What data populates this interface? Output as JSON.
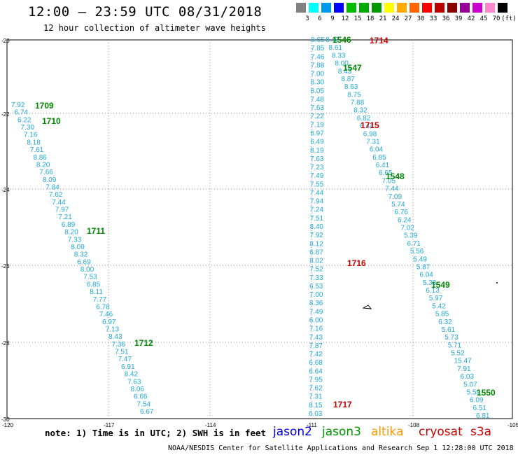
{
  "title": "12:00 – 23:59 UTC 08/31/2018",
  "subtitle": "12 hour collection of altimeter wave heights",
  "legend": {
    "colors": [
      "#808080",
      "#00ffff",
      "#0099ee",
      "#0000ff",
      "#00bb00",
      "#00aa00",
      "#009900",
      "#ffff00",
      "#ffaa00",
      "#ff6600",
      "#ff0000",
      "#bb0000",
      "#880000",
      "#990099",
      "#cc00cc",
      "#ff88cc",
      "#000000"
    ],
    "labels": [
      "3",
      "6",
      "9",
      "12",
      "15",
      "18",
      "21",
      "24",
      "27",
      "30",
      "33",
      "36",
      "39",
      "42",
      "45",
      "70",
      "(ft)"
    ]
  },
  "axes": {
    "lat_labels": [
      "-20",
      "-22",
      "-24",
      "-26",
      "-28",
      "-30"
    ],
    "lon_labels": [
      "-120",
      "-117",
      "-114",
      "-111",
      "-108",
      "-105"
    ]
  },
  "note": "note: 1) Time is in UTC; 2) SWH is in feet",
  "satellites": [
    {
      "name": "jason2",
      "color": "#0000dd"
    },
    {
      "name": "jason3",
      "color": "#009900"
    },
    {
      "name": "altika",
      "color": "#ff9900"
    },
    {
      "name": "cryosat",
      "color": "#cc0000"
    },
    {
      "name": "s3a",
      "color": "#cc0000"
    }
  ],
  "credit": "NOAA/NESDIS Center for Satellite Applications and Research   Sep  1 12:28:00 UTC 2018",
  "tracks": [
    {
      "id": "west",
      "values": [
        "7.92",
        "6.74",
        "6.22",
        "7.30",
        "7.16",
        "8.18",
        "7.61",
        "8.86",
        "8.20",
        "7.66",
        "8.09",
        "7.84",
        "7.62",
        "7.44",
        "7.97",
        "7.21",
        "6.89",
        "8.20",
        "7.33",
        "8.09",
        "8.32",
        "6.69",
        "8.00",
        "7.53",
        "6.85",
        "8.11",
        "7.77",
        "6.78",
        "7.46",
        "6.97",
        "7.13",
        "8.43",
        "7.36",
        "7.51",
        "7.47",
        "6.91",
        "8.42",
        "7.63",
        "8.06",
        "6.66",
        "7.54",
        "6.67"
      ]
    },
    {
      "id": "central",
      "values": [
        "8.65",
        "7.85",
        "7.46",
        "7.88",
        "7.00",
        "8.30",
        "8.05",
        "7.48",
        "7.63",
        "7.22",
        "7.19",
        "6.97",
        "6.49",
        "8.19",
        "7.63",
        "7.23",
        "7.49",
        "7.55",
        "7.44",
        "7.94",
        "7.24",
        "7.51",
        "8.40",
        "7.92",
        "8.12",
        "6.87",
        "8.02",
        "7.52",
        "7.33",
        "6.53",
        "7.00",
        "8.36",
        "7.49",
        "6.00",
        "7.16",
        "7.43",
        "7.87",
        "7.42",
        "6.68",
        "6.64",
        "7.95",
        "7.62",
        "7.31",
        "8.15",
        "6.03"
      ]
    },
    {
      "id": "east",
      "values": [
        "8.47",
        "8.61",
        "8.33",
        "8.00",
        "8.43",
        "8.87",
        "8.63",
        "8.75",
        "7.88",
        "8.32",
        "6.82",
        "6.44",
        "6.98",
        "7.31",
        "6.04",
        "6.85",
        "6.41",
        "6.65",
        "7.05",
        "7.44",
        "7.09",
        "5.74",
        "6.76",
        "6.24",
        "7.02",
        "5.39",
        "6.71",
        "5.56",
        "5.49",
        "5.87",
        "6.04",
        "5.33",
        "6.13",
        "5.97",
        "5.42",
        "5.85",
        "6.32",
        "5.61",
        "5.73",
        "5.71",
        "5.52",
        "15.47",
        "7.91",
        "6.03",
        "5.07",
        "5.59",
        "6.09",
        "6.51",
        "6.81"
      ]
    }
  ],
  "times": [
    {
      "label": "1709",
      "color": "#008800"
    },
    {
      "label": "1710",
      "color": "#008800"
    },
    {
      "label": "1711",
      "color": "#008800"
    },
    {
      "label": "1712",
      "color": "#008800"
    },
    {
      "label": "1546",
      "color": "#008800"
    },
    {
      "label": "1547",
      "color": "#008800"
    },
    {
      "label": "1548",
      "color": "#008800"
    },
    {
      "label": "1549",
      "color": "#008800"
    },
    {
      "label": "1550",
      "color": "#008800"
    },
    {
      "label": "1714",
      "color": "#cc0000"
    },
    {
      "label": "1715",
      "color": "#cc0000"
    },
    {
      "label": "1716",
      "color": "#cc0000"
    },
    {
      "label": "1717",
      "color": "#cc0000"
    }
  ]
}
